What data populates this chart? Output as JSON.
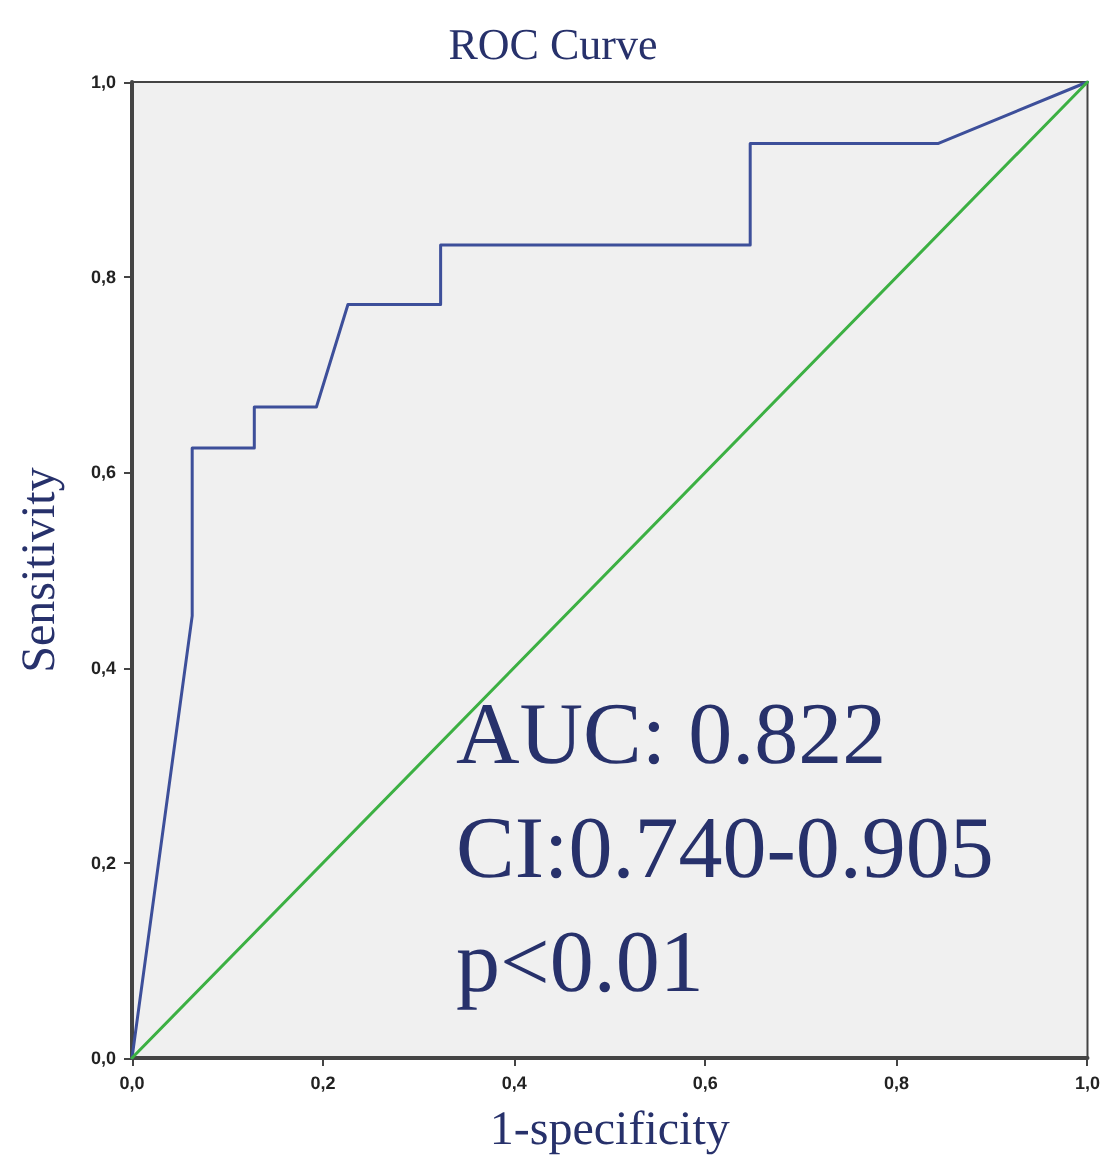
{
  "chart_data": {
    "type": "line",
    "title": "ROC Curve",
    "xlabel": "1-specificity",
    "ylabel": "Sensitivity",
    "annotations": [
      "AUC: 0.822",
      "CI:0.740-0.905",
      "p<0.01"
    ],
    "series": [
      {
        "color": "#3d4f9a",
        "x": [
          0,
          0.063,
          0.063,
          0.128,
          0.128,
          0.193,
          0.226,
          0.323,
          0.323,
          0.647,
          0.647,
          0.844,
          1
        ],
        "values": [
          0,
          0.453,
          0.625,
          0.625,
          0.667,
          0.667,
          0.772,
          0.772,
          0.833,
          0.833,
          0.937,
          0.937,
          1
        ]
      },
      {
        "color": "#3cb043",
        "x": [
          0,
          1
        ],
        "values": [
          0,
          1
        ]
      }
    ],
    "xlim": [
      0,
      1
    ],
    "ylim": [
      0,
      1
    ],
    "xticks": [
      {
        "value": 0,
        "label": "0,0"
      },
      {
        "value": 0.2,
        "label": "0,2"
      },
      {
        "value": 0.4,
        "label": "0,4"
      },
      {
        "value": 0.6,
        "label": "0,6"
      },
      {
        "value": 0.8,
        "label": "0,8"
      },
      {
        "value": 1,
        "label": "1,0"
      }
    ],
    "yticks": [
      {
        "value": 0,
        "label": "0,0"
      },
      {
        "value": 0.2,
        "label": "0,2"
      },
      {
        "value": 0.4,
        "label": "0,4"
      },
      {
        "value": 0.6,
        "label": "0,6"
      },
      {
        "value": 0.8,
        "label": "0,8"
      },
      {
        "value": 1,
        "label": "1,0"
      }
    ],
    "grid": false,
    "marker": "none",
    "line_style": "solid"
  }
}
